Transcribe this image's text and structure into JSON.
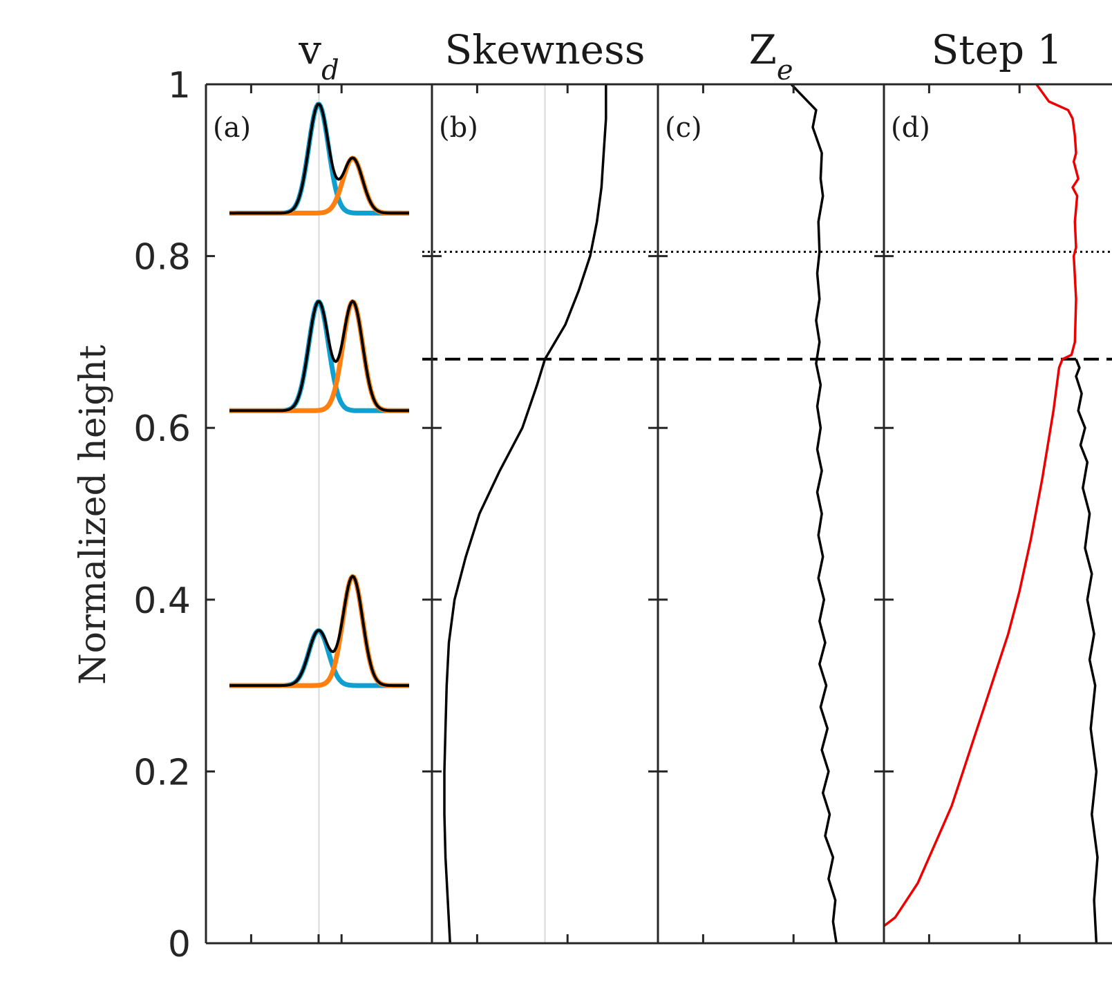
{
  "chart_data": {
    "type": "line",
    "ylabel": "Normalized height",
    "ylim": [
      0,
      1
    ],
    "yticks": [
      "0",
      "0.2",
      "0.4",
      "0.6",
      "0.8",
      "1"
    ],
    "ytick_values": [
      0,
      0.2,
      0.4,
      0.6,
      0.8,
      1
    ],
    "reference_lines": [
      {
        "style": "dotted",
        "y": 0.805
      },
      {
        "style": "dashed",
        "y": 0.68
      }
    ],
    "colors": {
      "axes": "#262626",
      "black_line": "#000000",
      "blue": "#0fa0d0",
      "orange": "#ff8010",
      "red": "#ee0000",
      "gridline": "#d9d9d9"
    },
    "panels": [
      {
        "id": "a",
        "title": "v",
        "title_sub": "d",
        "label": "(a)",
        "xlim": [
          -1,
          1
        ],
        "gridline_x": 0,
        "spectra": [
          {
            "baseline": 0.85,
            "peaks": [
              {
                "mu": 0,
                "amp": 0.127,
                "sigma": 0.11,
                "color": "blue"
              },
              {
                "mu": 0.38,
                "amp": 0.064,
                "sigma": 0.11,
                "color": "orange"
              }
            ]
          },
          {
            "baseline": 0.62,
            "peaks": [
              {
                "mu": 0,
                "amp": 0.127,
                "sigma": 0.11,
                "color": "blue"
              },
              {
                "mu": 0.38,
                "amp": 0.127,
                "sigma": 0.11,
                "color": "orange"
              }
            ]
          },
          {
            "baseline": 0.3,
            "peaks": [
              {
                "mu": 0,
                "amp": 0.064,
                "sigma": 0.11,
                "color": "blue"
              },
              {
                "mu": 0.38,
                "amp": 0.127,
                "sigma": 0.11,
                "color": "orange"
              }
            ]
          }
        ]
      },
      {
        "id": "b",
        "title": "Skewness",
        "label": "(b)",
        "xlim": [
          -1,
          1
        ],
        "gridline_x": 0,
        "series": [
          {
            "color": "black_line",
            "x": [
              -0.84,
              -0.86,
              -0.88,
              -0.89,
              -0.89,
              -0.88,
              -0.87,
              -0.85,
              -0.8,
              -0.7,
              -0.58,
              -0.4,
              -0.2,
              -0.07,
              0.0,
              0.18,
              0.3,
              0.4,
              0.46,
              0.5,
              0.52,
              0.54,
              0.54
            ],
            "y": [
              0.0,
              0.05,
              0.1,
              0.15,
              0.2,
              0.25,
              0.3,
              0.35,
              0.4,
              0.45,
              0.5,
              0.55,
              0.6,
              0.65,
              0.68,
              0.72,
              0.76,
              0.8,
              0.84,
              0.88,
              0.92,
              0.96,
              1.0
            ]
          }
        ]
      },
      {
        "id": "c",
        "title": "Z",
        "title_sub": "e",
        "label": "(c)",
        "xlim": [
          -1,
          1
        ],
        "series": [
          {
            "color": "black_line",
            "x": [
              0.58,
              0.55,
              0.57,
              0.51,
              0.55,
              0.48,
              0.52,
              0.46,
              0.51,
              0.45,
              0.5,
              0.44,
              0.49,
              0.43,
              0.48,
              0.43,
              0.47,
              0.42,
              0.46,
              0.42,
              0.45,
              0.41,
              0.45,
              0.41,
              0.44,
              0.41,
              0.44,
              0.4,
              0.43,
              0.4,
              0.43,
              0.41,
              0.43,
              0.42,
              0.46,
              0.44,
              0.45,
              0.37,
              0.4,
              0.18
            ],
            "y": [
              0.0,
              0.025,
              0.05,
              0.075,
              0.1,
              0.125,
              0.15,
              0.175,
              0.2,
              0.225,
              0.25,
              0.275,
              0.3,
              0.325,
              0.35,
              0.375,
              0.4,
              0.425,
              0.45,
              0.475,
              0.5,
              0.525,
              0.55,
              0.575,
              0.6,
              0.625,
              0.65,
              0.675,
              0.7,
              0.725,
              0.75,
              0.78,
              0.805,
              0.84,
              0.87,
              0.89,
              0.92,
              0.95,
              0.97,
              1.0
            ]
          }
        ]
      },
      {
        "id": "d",
        "title": "Step 1",
        "label": "(d)",
        "xlim": [
          -1,
          1
        ],
        "series": [
          {
            "color": "black_line",
            "x": [
              0.88,
              0.86,
              0.89,
              0.84,
              0.88,
              0.83,
              0.87,
              0.82,
              0.86,
              0.8,
              0.84,
              0.78,
              0.82,
              0.76,
              0.8,
              0.74,
              0.78,
              0.72,
              0.75,
              0.7,
              0.73,
              0.7,
              0.7
            ],
            "y": [
              0.0,
              0.05,
              0.1,
              0.15,
              0.2,
              0.25,
              0.3,
              0.33,
              0.36,
              0.4,
              0.43,
              0.46,
              0.5,
              0.53,
              0.56,
              0.58,
              0.6,
              0.62,
              0.64,
              0.66,
              0.67,
              0.68,
              0.68
            ]
          },
          {
            "color": "red",
            "x": [
              -1.0,
              -0.9,
              -0.8,
              -0.7,
              -0.6,
              -0.5,
              -0.4,
              -0.3,
              -0.2,
              -0.1,
              0.0,
              0.1,
              0.2,
              0.3,
              0.4,
              0.5,
              0.55,
              0.58,
              0.66,
              0.69,
              0.7,
              0.68,
              0.7,
              0.69,
              0.71,
              0.67,
              0.72,
              0.68,
              0.7,
              0.69,
              0.67,
              0.63,
              0.46,
              0.35
            ],
            "y": [
              0.02,
              0.03,
              0.05,
              0.07,
              0.1,
              0.13,
              0.16,
              0.2,
              0.24,
              0.28,
              0.32,
              0.36,
              0.41,
              0.47,
              0.54,
              0.62,
              0.67,
              0.68,
              0.685,
              0.7,
              0.75,
              0.8,
              0.81,
              0.84,
              0.87,
              0.88,
              0.89,
              0.91,
              0.92,
              0.94,
              0.96,
              0.97,
              0.98,
              1.0
            ]
          }
        ]
      }
    ]
  }
}
